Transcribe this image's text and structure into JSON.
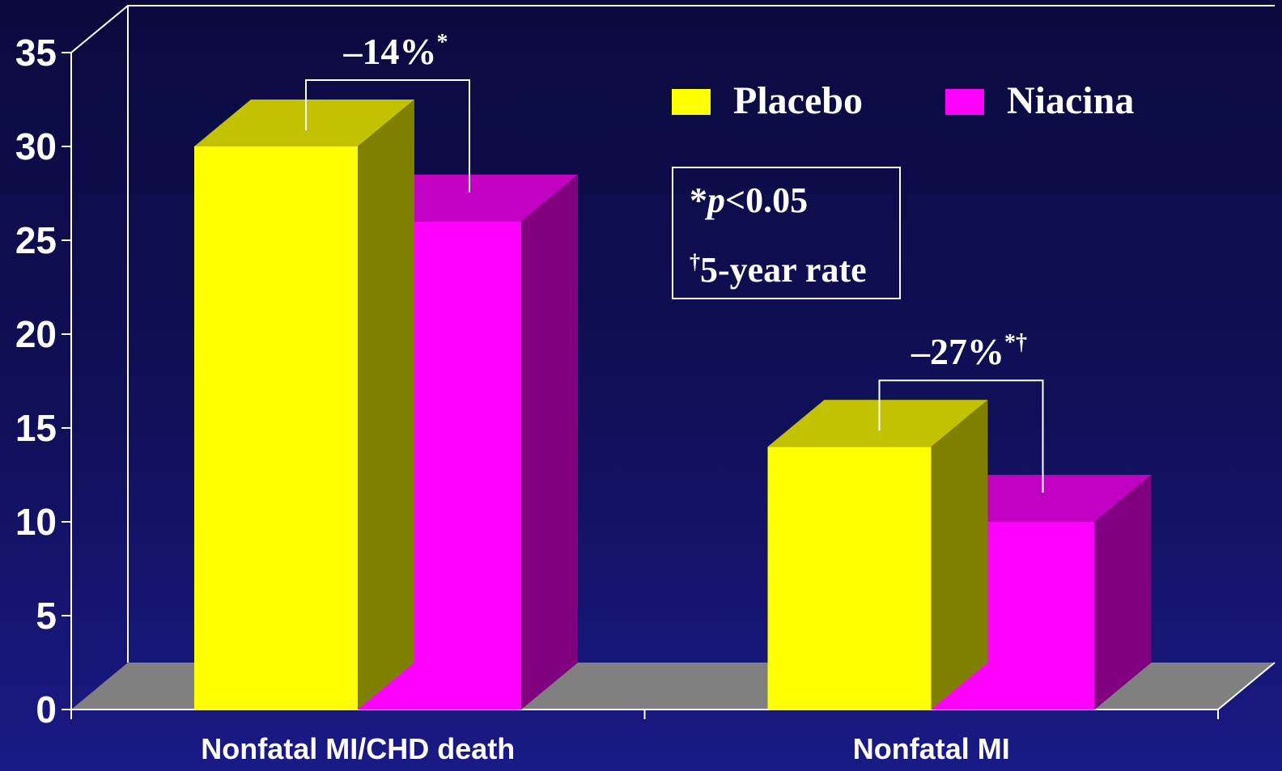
{
  "chart_data": {
    "type": "bar",
    "categories": [
      "Nonfatal MI/CHD death",
      "Nonfatal MI"
    ],
    "series": [
      {
        "name": "Placebo",
        "values": [
          30,
          14
        ],
        "color": "#ffff00"
      },
      {
        "name": "Niacina",
        "values": [
          26,
          10
        ],
        "color": "#ff00ff"
      }
    ],
    "ylim": [
      0,
      35
    ],
    "yticks": [
      0,
      5,
      10,
      15,
      20,
      25,
      30,
      35
    ],
    "title": "",
    "xlabel": "",
    "ylabel": "",
    "legend_position": "top-right",
    "annotations": [
      {
        "category_index": 0,
        "prefix": "–14%",
        "suffix": "*"
      },
      {
        "category_index": 1,
        "prefix": "–27%",
        "suffix": "*†"
      }
    ],
    "notes": [
      {
        "mark": "*",
        "italic": "p",
        "rest": "<0.05"
      },
      {
        "mark": "†",
        "italic": "",
        "rest": "5-year rate"
      }
    ]
  }
}
